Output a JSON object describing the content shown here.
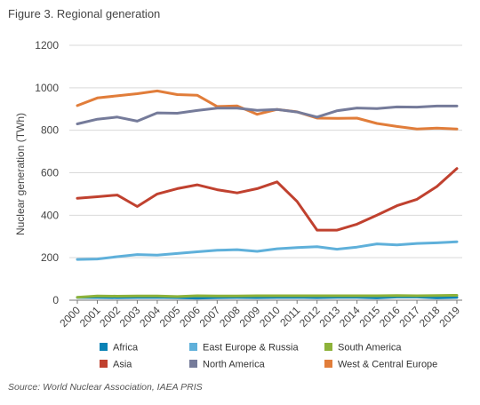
{
  "figure": {
    "title": "Figure 3. Regional generation",
    "source": "Source: World Nuclear Association, IAEA PRIS"
  },
  "chart_data": {
    "type": "line",
    "title": "Figure 3. Regional generation",
    "xlabel": "",
    "ylabel": "Nuclear generation (TWh)",
    "ylim": [
      0,
      1200
    ],
    "yticks": [
      0,
      200,
      400,
      600,
      800,
      1000,
      1200
    ],
    "grid": "horizontal",
    "legend_position": "bottom",
    "x": [
      "2000",
      "2001",
      "2002",
      "2003",
      "2004",
      "2005",
      "2006",
      "2007",
      "2008",
      "2009",
      "2010",
      "2011",
      "2012",
      "2013",
      "2014",
      "2015",
      "2016",
      "2017",
      "2018",
      "2019"
    ],
    "series": [
      {
        "name": "Africa",
        "color": "#0a82b5",
        "values": [
          13,
          13,
          12,
          13,
          14,
          12,
          10,
          12,
          13,
          12,
          13,
          14,
          12,
          14,
          14,
          11,
          15,
          15,
          11,
          13
        ]
      },
      {
        "name": "Asia",
        "color": "#c0412f",
        "values": [
          480,
          487,
          495,
          441,
          500,
          525,
          543,
          520,
          505,
          525,
          557,
          465,
          330,
          330,
          358,
          400,
          445,
          475,
          535,
          620
        ]
      },
      {
        "name": "East Europe & Russia",
        "color": "#5fb0da",
        "values": [
          192,
          194,
          205,
          215,
          212,
          220,
          228,
          235,
          238,
          230,
          242,
          248,
          252,
          240,
          250,
          265,
          260,
          267,
          270,
          275
        ]
      },
      {
        "name": "North America",
        "color": "#757b9a",
        "values": [
          830,
          852,
          862,
          843,
          882,
          880,
          893,
          904,
          904,
          894,
          898,
          886,
          862,
          892,
          905,
          902,
          910,
          909,
          914,
          914
        ]
      },
      {
        "name": "South America",
        "color": "#8db23a",
        "values": [
          14,
          20,
          19,
          20,
          20,
          17,
          21,
          20,
          20,
          21,
          21,
          21,
          21,
          21,
          21,
          21,
          22,
          21,
          22,
          23
        ]
      },
      {
        "name": "West & Central Europe",
        "color": "#e17d3a",
        "values": [
          916,
          952,
          962,
          972,
          985,
          968,
          965,
          912,
          915,
          875,
          898,
          887,
          857,
          856,
          857,
          832,
          818,
          806,
          810,
          806
        ]
      }
    ]
  }
}
